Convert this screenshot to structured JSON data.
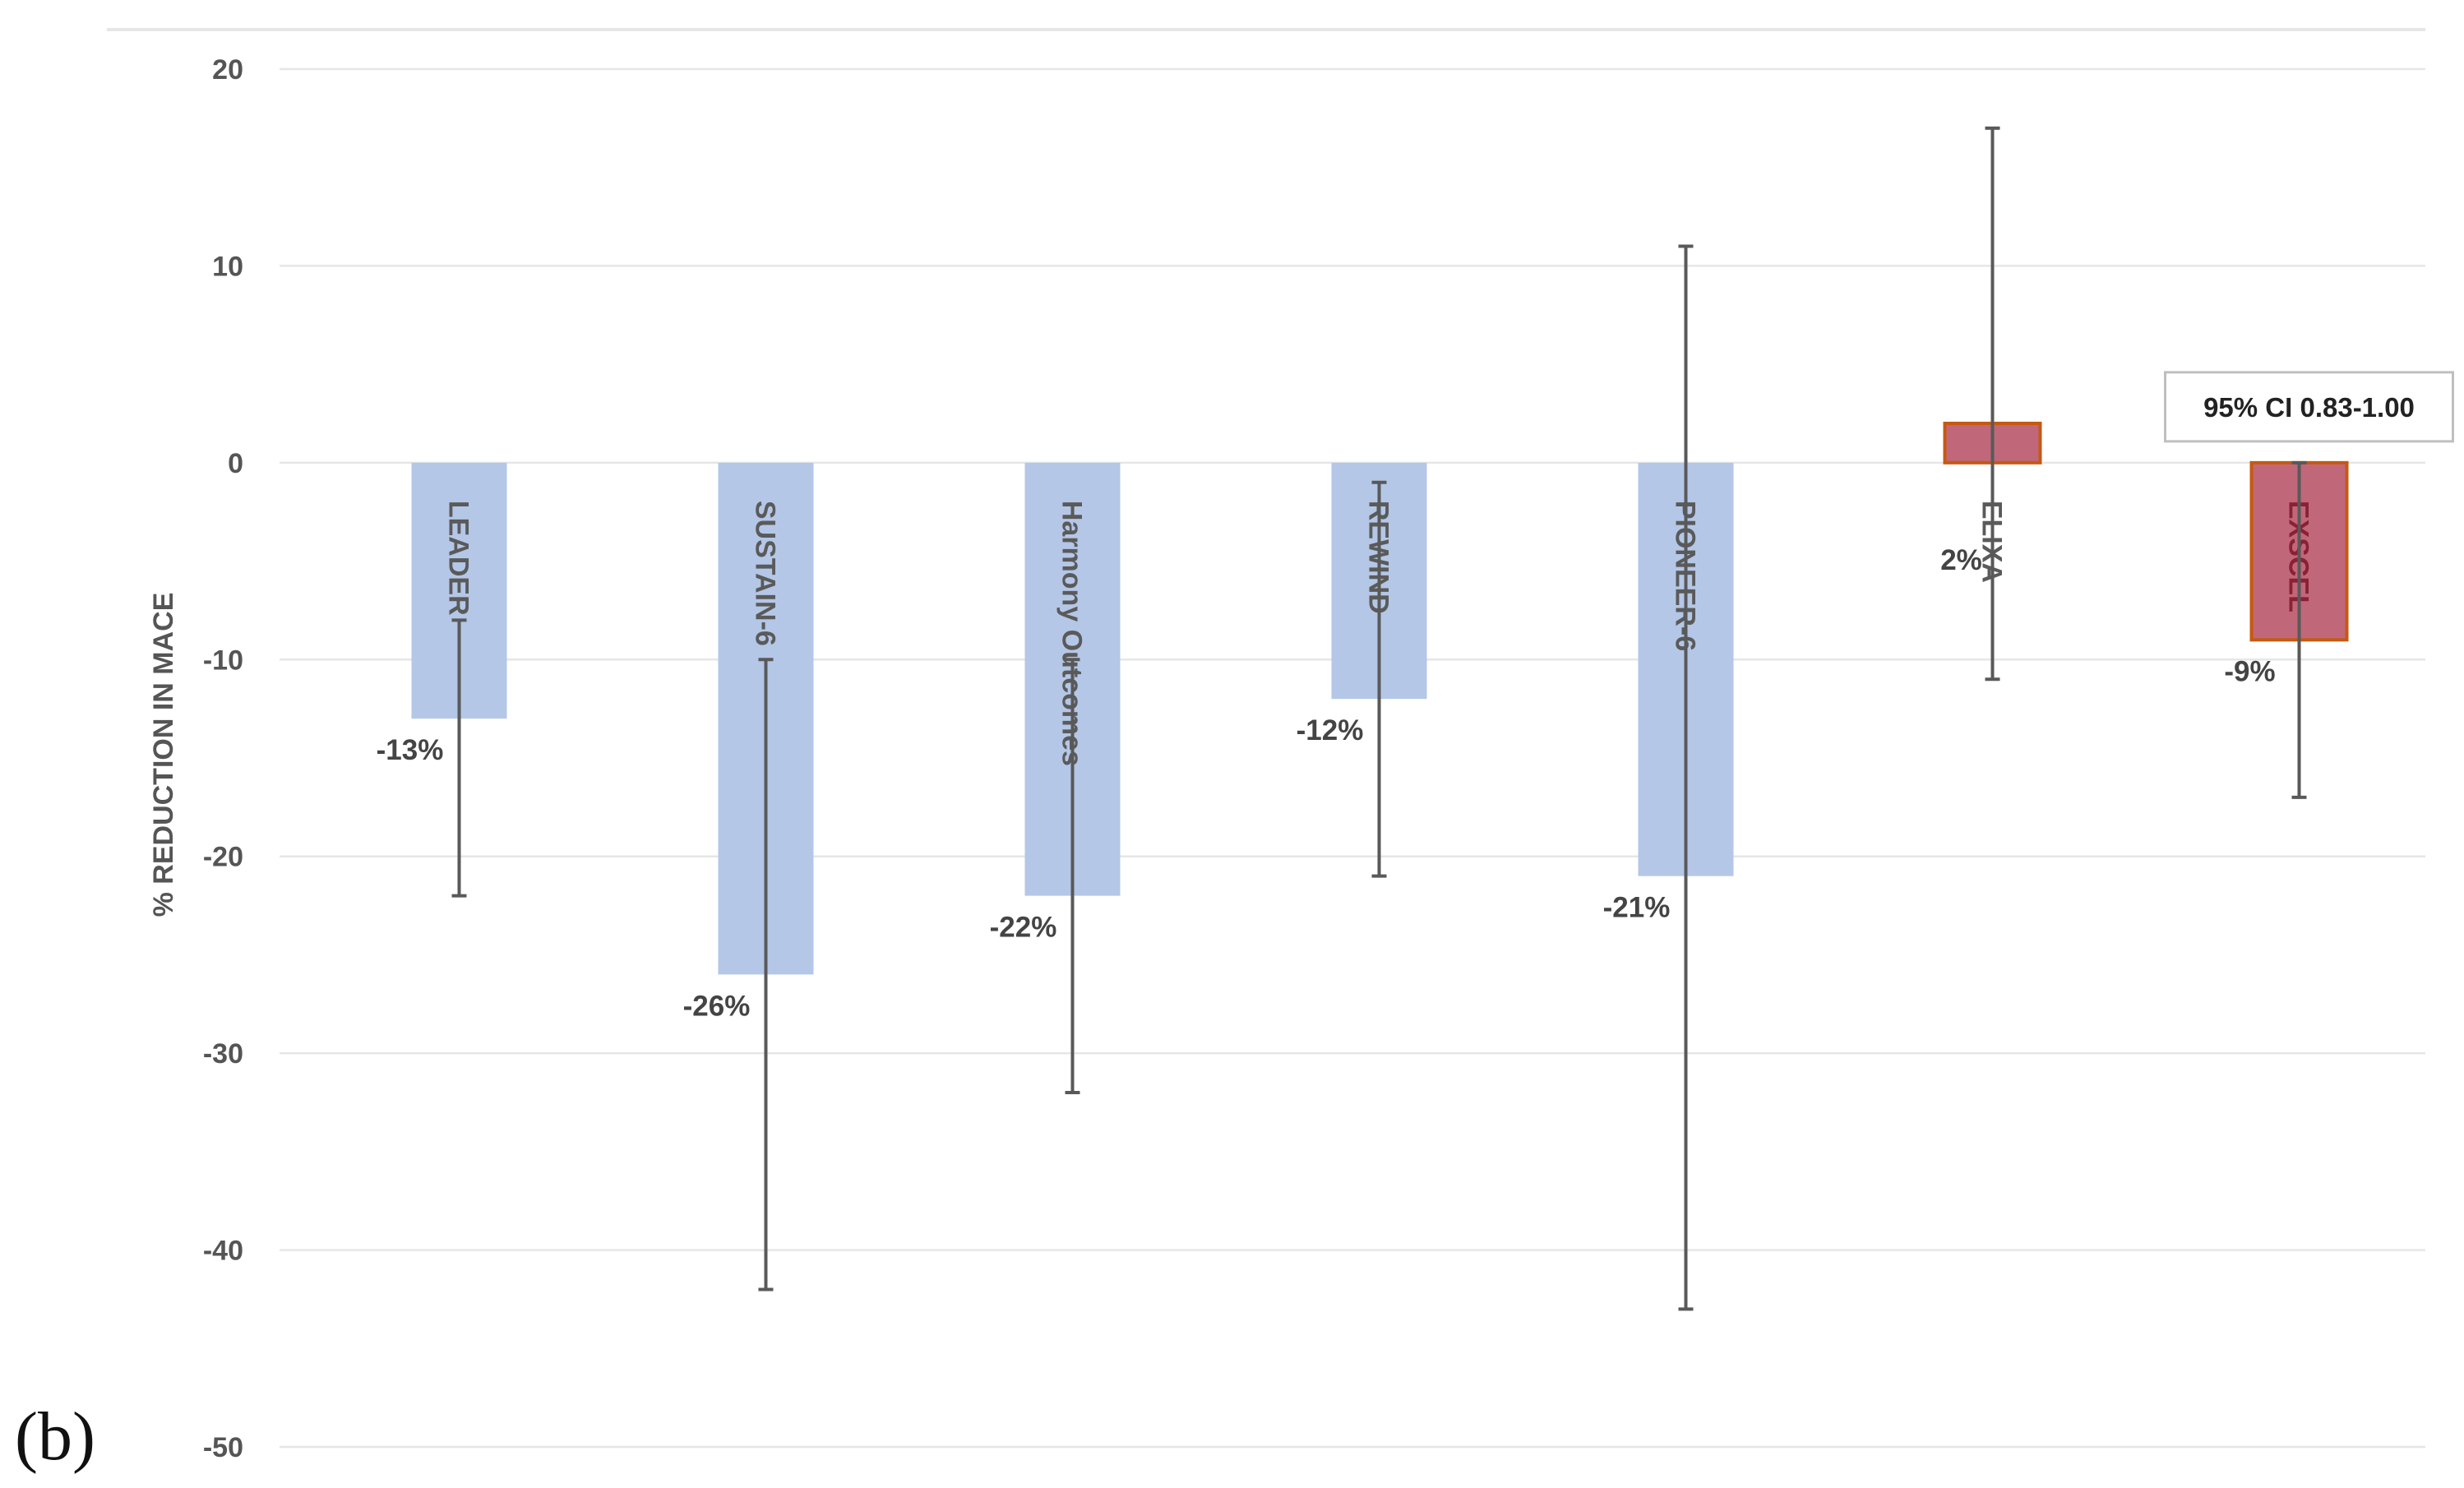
{
  "panel_label": "(b)",
  "chart_data": {
    "type": "bar",
    "ylabel": "% REDUCTION IN MACE",
    "ylim": [
      -50,
      20
    ],
    "yticks": [
      20,
      10,
      0,
      -10,
      -20,
      -30,
      -40,
      -50
    ],
    "grid": true,
    "categories": [
      "LEADER",
      "SUSTAIN-6",
      "Harmony Outcomes",
      "REWIND",
      "PIONEER-6",
      "ELIXA",
      "EXSCEL"
    ],
    "values": [
      -13,
      -26,
      -22,
      -12,
      -21,
      2,
      -9
    ],
    "data_labels": [
      "-13%",
      "-26%",
      "-22%",
      "-12%",
      "-21%",
      "2%",
      "-9%"
    ],
    "error_bars": [
      {
        "low": -22,
        "high": -8
      },
      {
        "low": -42,
        "high": -10
      },
      {
        "low": -32,
        "high": -10
      },
      {
        "low": -21,
        "high": -1
      },
      {
        "low": -43,
        "high": 11
      },
      {
        "low": -11,
        "high": 17
      },
      {
        "low": -17,
        "high": 0
      }
    ],
    "bar_fill_colors": [
      "#b4c7e7",
      "#b4c7e7",
      "#b4c7e7",
      "#b4c7e7",
      "#b4c7e7",
      "#c0687a",
      "#c0687a"
    ],
    "bar_border_colors": [
      "none",
      "none",
      "none",
      "none",
      "none",
      "#c65911",
      "#c65911"
    ],
    "bar_label_colors": [
      "#5a5a5a",
      "#5a5a5a",
      "#5a5a5a",
      "#5a5a5a",
      "#5a5a5a",
      "#5a5a5a",
      "#8b2035"
    ],
    "annotation": {
      "text": "95% CI 0.83-1.00",
      "category": "EXSCEL"
    },
    "colors": {
      "grid": "#e6e6e6",
      "error_bar": "#595959",
      "axis_text": "#555555"
    }
  }
}
